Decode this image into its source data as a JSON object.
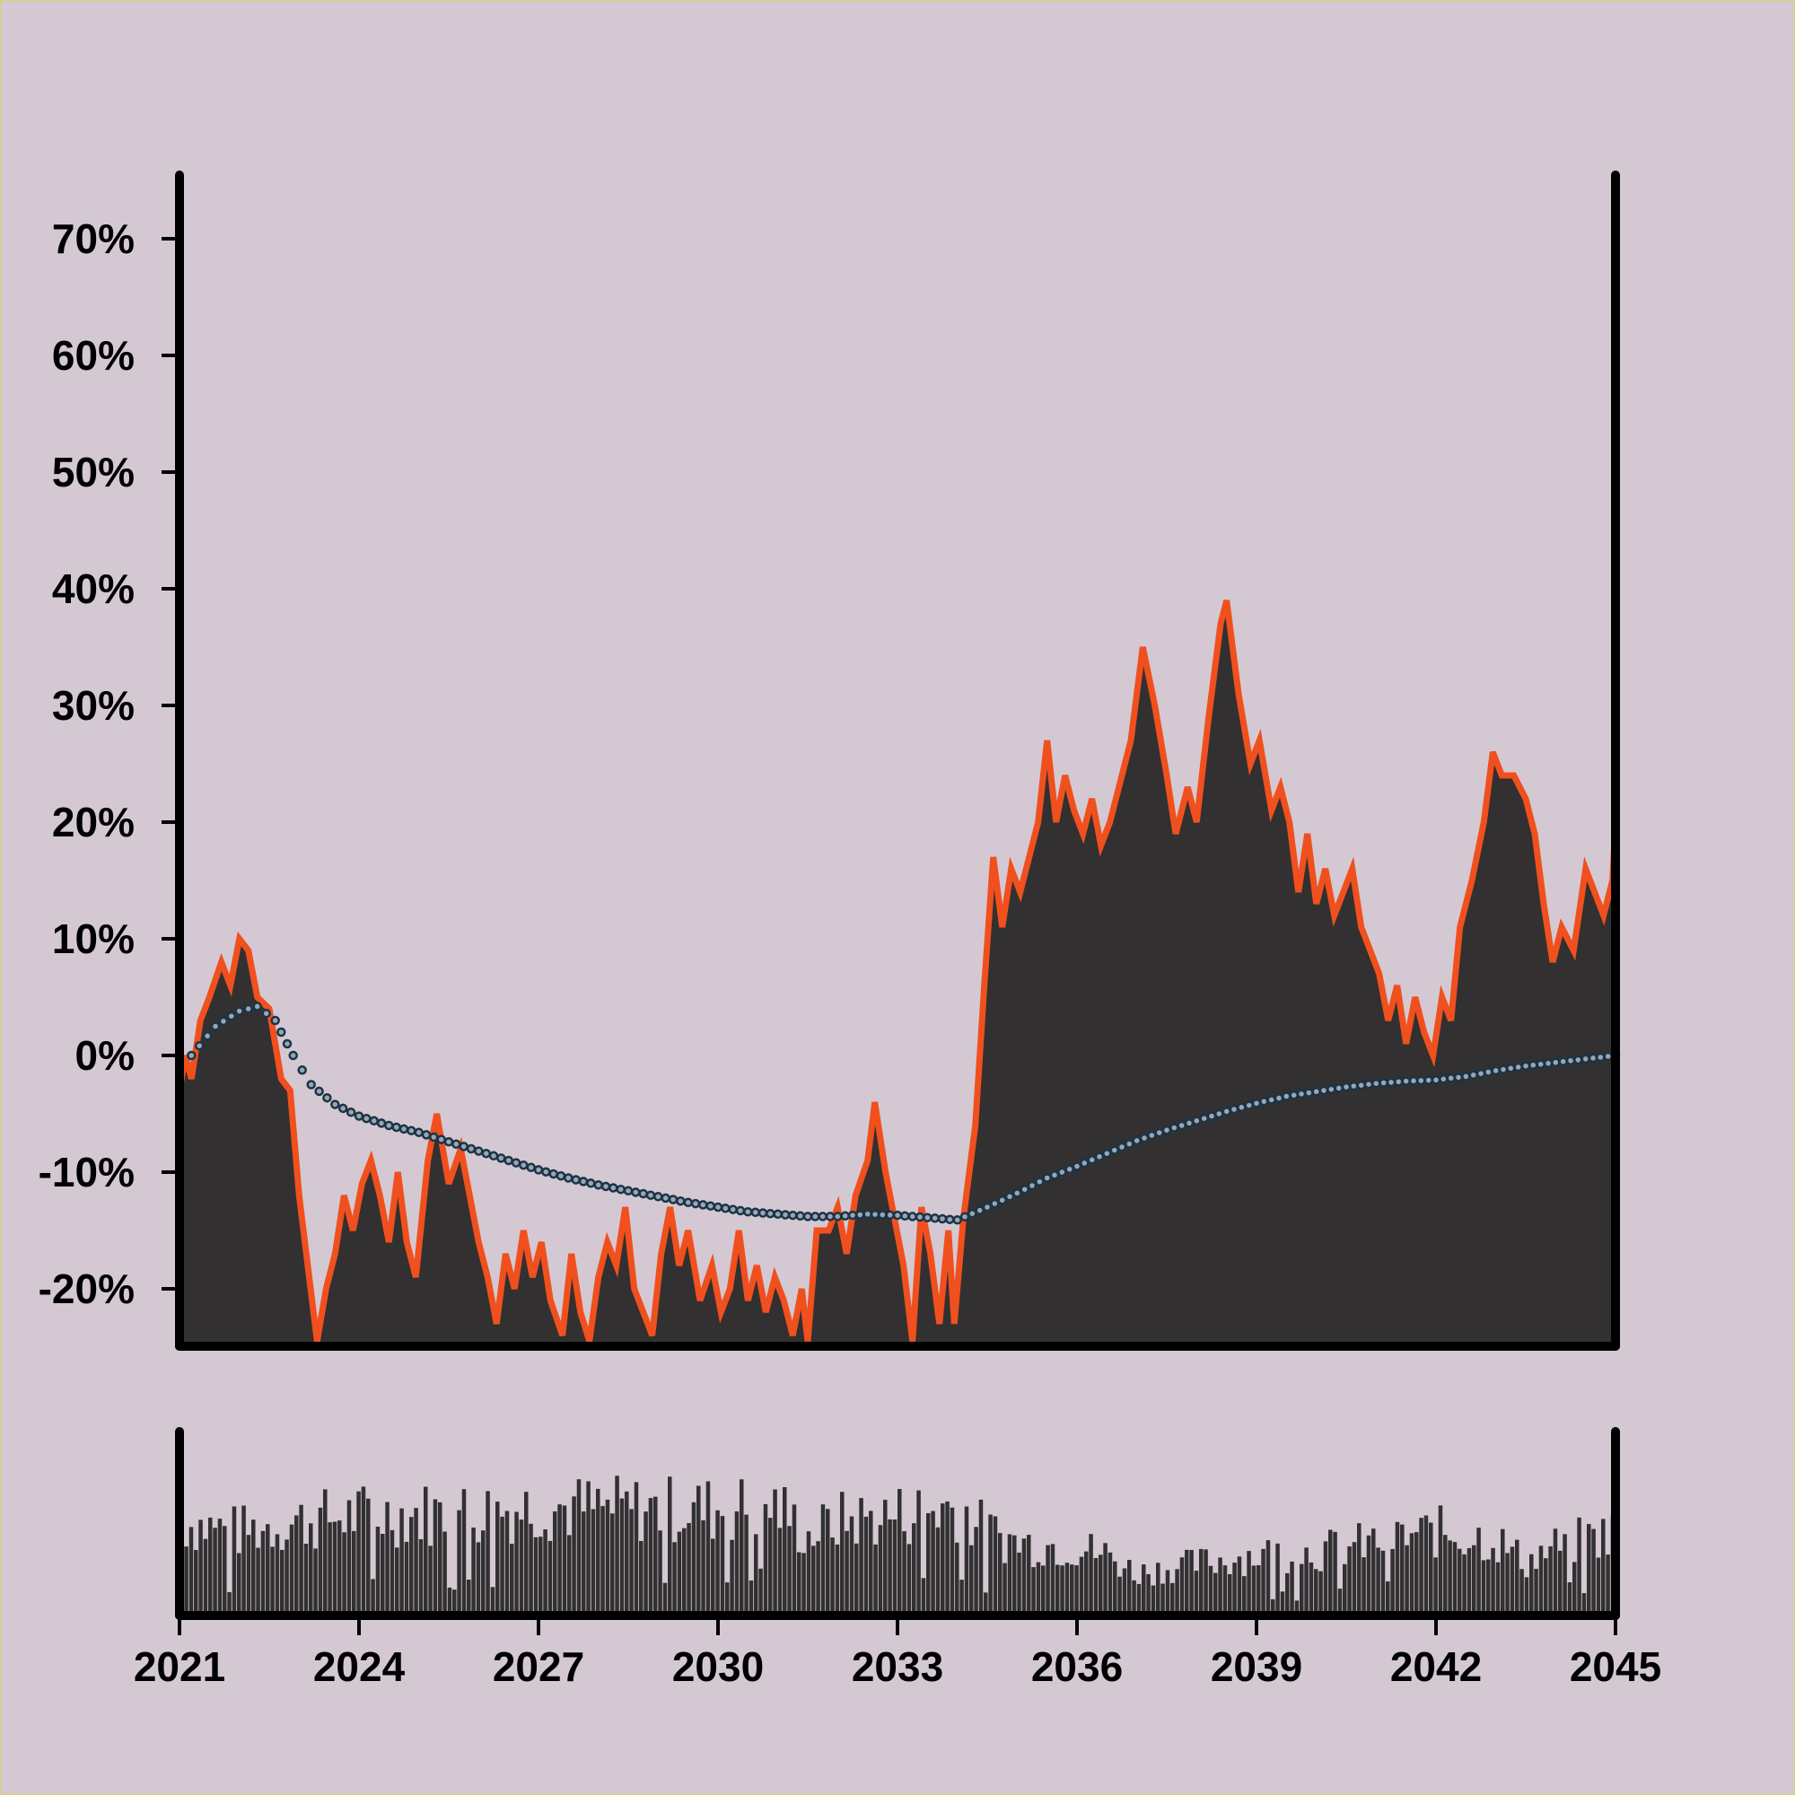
{
  "colors": {
    "background": "#d4c9d3",
    "fill": "#323031",
    "line": "#f0501e",
    "dots": "#1c3444",
    "axis": "#000000"
  },
  "chart_data": [
    {
      "type": "area",
      "title": "",
      "xlabel": "",
      "ylabel": "",
      "xlim": [
        2021,
        2045
      ],
      "ylim": [
        -24.5,
        75
      ],
      "grid": false,
      "legend": "none",
      "y_tick_labels": [
        "-20%",
        "-10%",
        "0%",
        "10%",
        "20%",
        "30%",
        "40%",
        "50%",
        "60%",
        "70%"
      ],
      "y_ticks": [
        -20,
        -10,
        0,
        10,
        20,
        30,
        40,
        50,
        60,
        70
      ],
      "series": [
        {
          "style": "area-with-line",
          "points": [
            [
              2021.0,
              -3
            ],
            [
              2021.1,
              0
            ],
            [
              2021.2,
              -2
            ],
            [
              2021.35,
              3
            ],
            [
              2021.5,
              5
            ],
            [
              2021.7,
              8
            ],
            [
              2021.85,
              6
            ],
            [
              2022.0,
              10
            ],
            [
              2022.15,
              9
            ],
            [
              2022.3,
              5
            ],
            [
              2022.5,
              4
            ],
            [
              2022.7,
              -2
            ],
            [
              2022.85,
              -3
            ],
            [
              2023.0,
              -12
            ],
            [
              2023.3,
              -24.5
            ],
            [
              2023.45,
              -20
            ],
            [
              2023.6,
              -17
            ],
            [
              2023.75,
              -12
            ],
            [
              2023.9,
              -15
            ],
            [
              2024.05,
              -11
            ],
            [
              2024.2,
              -9
            ],
            [
              2024.35,
              -12
            ],
            [
              2024.5,
              -16
            ],
            [
              2024.65,
              -10
            ],
            [
              2024.8,
              -16
            ],
            [
              2024.95,
              -19
            ],
            [
              2025.15,
              -9
            ],
            [
              2025.3,
              -5
            ],
            [
              2025.5,
              -11
            ],
            [
              2025.7,
              -8
            ],
            [
              2025.85,
              -12
            ],
            [
              2026.0,
              -16
            ],
            [
              2026.15,
              -19
            ],
            [
              2026.3,
              -23
            ],
            [
              2026.45,
              -17
            ],
            [
              2026.6,
              -20
            ],
            [
              2026.75,
              -15
            ],
            [
              2026.9,
              -19
            ],
            [
              2027.05,
              -16
            ],
            [
              2027.2,
              -21
            ],
            [
              2027.4,
              -24
            ],
            [
              2027.55,
              -17
            ],
            [
              2027.7,
              -22
            ],
            [
              2027.85,
              -24.5
            ],
            [
              2028.0,
              -19
            ],
            [
              2028.15,
              -16
            ],
            [
              2028.3,
              -18
            ],
            [
              2028.45,
              -13
            ],
            [
              2028.6,
              -20
            ],
            [
              2028.75,
              -22
            ],
            [
              2028.9,
              -24
            ],
            [
              2029.05,
              -17
            ],
            [
              2029.2,
              -13
            ],
            [
              2029.35,
              -18
            ],
            [
              2029.5,
              -15
            ],
            [
              2029.7,
              -21
            ],
            [
              2029.9,
              -18
            ],
            [
              2030.05,
              -22
            ],
            [
              2030.2,
              -20
            ],
            [
              2030.35,
              -15
            ],
            [
              2030.5,
              -21
            ],
            [
              2030.65,
              -18
            ],
            [
              2030.8,
              -22
            ],
            [
              2030.95,
              -19
            ],
            [
              2031.1,
              -21
            ],
            [
              2031.25,
              -24
            ],
            [
              2031.4,
              -20
            ],
            [
              2031.5,
              -24.5
            ],
            [
              2031.65,
              -15
            ],
            [
              2031.85,
              -15
            ],
            [
              2032.0,
              -13
            ],
            [
              2032.15,
              -17
            ],
            [
              2032.3,
              -12
            ],
            [
              2032.5,
              -9
            ],
            [
              2032.62,
              -4
            ],
            [
              2032.8,
              -10
            ],
            [
              2032.95,
              -14
            ],
            [
              2033.1,
              -18
            ],
            [
              2033.25,
              -24.5
            ],
            [
              2033.4,
              -13
            ],
            [
              2033.55,
              -17
            ],
            [
              2033.7,
              -23
            ],
            [
              2033.85,
              -15
            ],
            [
              2033.95,
              -23
            ],
            [
              2034.1,
              -14
            ],
            [
              2034.3,
              -6
            ],
            [
              2034.45,
              6
            ],
            [
              2034.6,
              17
            ],
            [
              2034.75,
              11
            ],
            [
              2034.9,
              16
            ],
            [
              2035.05,
              14
            ],
            [
              2035.2,
              17
            ],
            [
              2035.35,
              20
            ],
            [
              2035.5,
              27
            ],
            [
              2035.65,
              20
            ],
            [
              2035.8,
              24
            ],
            [
              2035.95,
              21
            ],
            [
              2036.1,
              19
            ],
            [
              2036.25,
              22
            ],
            [
              2036.4,
              18
            ],
            [
              2036.55,
              20
            ],
            [
              2036.7,
              23
            ],
            [
              2036.9,
              27
            ],
            [
              2037.1,
              35
            ],
            [
              2037.3,
              30
            ],
            [
              2037.5,
              24
            ],
            [
              2037.65,
              19
            ],
            [
              2037.85,
              23
            ],
            [
              2038.0,
              20
            ],
            [
              2038.2,
              29
            ],
            [
              2038.4,
              37
            ],
            [
              2038.5,
              39
            ],
            [
              2038.7,
              31
            ],
            [
              2038.9,
              25
            ],
            [
              2039.05,
              27
            ],
            [
              2039.25,
              21
            ],
            [
              2039.4,
              23
            ],
            [
              2039.55,
              20
            ],
            [
              2039.7,
              14
            ],
            [
              2039.85,
              19
            ],
            [
              2040.0,
              13
            ],
            [
              2040.15,
              16
            ],
            [
              2040.3,
              12
            ],
            [
              2040.45,
              14
            ],
            [
              2040.6,
              16
            ],
            [
              2040.75,
              11
            ],
            [
              2040.9,
              9
            ],
            [
              2041.05,
              7
            ],
            [
              2041.2,
              3
            ],
            [
              2041.35,
              6
            ],
            [
              2041.5,
              1
            ],
            [
              2041.65,
              5
            ],
            [
              2041.8,
              2
            ],
            [
              2041.95,
              0
            ],
            [
              2042.1,
              5
            ],
            [
              2042.25,
              3
            ],
            [
              2042.4,
              11
            ],
            [
              2042.6,
              15
            ],
            [
              2042.8,
              20
            ],
            [
              2042.95,
              26
            ],
            [
              2043.1,
              24
            ],
            [
              2043.3,
              24
            ],
            [
              2043.5,
              22
            ],
            [
              2043.65,
              19
            ],
            [
              2043.8,
              13
            ],
            [
              2043.95,
              8
            ],
            [
              2044.1,
              11
            ],
            [
              2044.3,
              9
            ],
            [
              2044.5,
              16
            ],
            [
              2044.65,
              14
            ],
            [
              2044.8,
              12
            ],
            [
              2044.95,
              15
            ],
            [
              2045.0,
              20
            ]
          ]
        },
        {
          "style": "dotted",
          "points": [
            [
              2021.2,
              0
            ],
            [
              2021.6,
              2.5
            ],
            [
              2022.0,
              3.8
            ],
            [
              2022.3,
              4.2
            ],
            [
              2022.6,
              3
            ],
            [
              2022.9,
              0
            ],
            [
              2023.2,
              -2.5
            ],
            [
              2023.6,
              -4.2
            ],
            [
              2024.0,
              -5.2
            ],
            [
              2024.5,
              -6
            ],
            [
              2025.0,
              -6.6
            ],
            [
              2025.5,
              -7.4
            ],
            [
              2026.0,
              -8.2
            ],
            [
              2026.5,
              -9
            ],
            [
              2027.0,
              -9.8
            ],
            [
              2027.5,
              -10.5
            ],
            [
              2028.0,
              -11.1
            ],
            [
              2028.5,
              -11.6
            ],
            [
              2029.0,
              -12.1
            ],
            [
              2029.5,
              -12.6
            ],
            [
              2030.0,
              -13
            ],
            [
              2030.5,
              -13.4
            ],
            [
              2031.0,
              -13.6
            ],
            [
              2031.5,
              -13.8
            ],
            [
              2032.0,
              -13.8
            ],
            [
              2032.5,
              -13.6
            ],
            [
              2033.0,
              -13.7
            ],
            [
              2033.5,
              -13.9
            ],
            [
              2034.0,
              -14.1
            ],
            [
              2034.5,
              -13
            ],
            [
              2035.0,
              -11.8
            ],
            [
              2035.5,
              -10.5
            ],
            [
              2036.0,
              -9.5
            ],
            [
              2036.5,
              -8.4
            ],
            [
              2037.0,
              -7.3
            ],
            [
              2037.5,
              -6.4
            ],
            [
              2038.0,
              -5.6
            ],
            [
              2038.5,
              -4.8
            ],
            [
              2039.0,
              -4.1
            ],
            [
              2039.5,
              -3.5
            ],
            [
              2040.0,
              -3.1
            ],
            [
              2040.5,
              -2.7
            ],
            [
              2041.0,
              -2.4
            ],
            [
              2041.5,
              -2.2
            ],
            [
              2042.0,
              -2.1
            ],
            [
              2042.5,
              -1.8
            ],
            [
              2043.0,
              -1.3
            ],
            [
              2043.5,
              -0.9
            ],
            [
              2044.0,
              -0.6
            ],
            [
              2044.5,
              -0.3
            ],
            [
              2045.0,
              0
            ]
          ]
        }
      ]
    },
    {
      "type": "bar",
      "title": "",
      "xlabel": "",
      "ylabel": "",
      "xlim": [
        2021,
        2045
      ],
      "ylim": [
        0,
        1
      ],
      "x_ticks": [
        2021,
        2024,
        2027,
        2030,
        2033,
        2036,
        2039,
        2042,
        2045
      ],
      "x_tick_labels": [
        "2021",
        "2024",
        "2027",
        "2030",
        "2033",
        "2036",
        "2039",
        "2042",
        "2045"
      ],
      "bar_count": 300,
      "envelope": [
        [
          2021.0,
          0.62
        ],
        [
          2022.0,
          0.55
        ],
        [
          2023.0,
          0.62
        ],
        [
          2024.0,
          0.66
        ],
        [
          2025.0,
          0.67
        ],
        [
          2026.0,
          0.68
        ],
        [
          2027.0,
          0.72
        ],
        [
          2028.0,
          0.7
        ],
        [
          2029.0,
          0.7
        ],
        [
          2030.0,
          0.7
        ],
        [
          2031.0,
          0.72
        ],
        [
          2031.5,
          0.52
        ],
        [
          2032.0,
          0.62
        ],
        [
          2033.0,
          0.66
        ],
        [
          2034.0,
          0.72
        ],
        [
          2034.5,
          0.55
        ],
        [
          2035.0,
          0.48
        ],
        [
          2036.0,
          0.45
        ],
        [
          2036.5,
          0.4
        ],
        [
          2037.0,
          0.28
        ],
        [
          2038.0,
          0.34
        ],
        [
          2039.0,
          0.4
        ],
        [
          2040.0,
          0.42
        ],
        [
          2041.0,
          0.48
        ],
        [
          2042.0,
          0.55
        ],
        [
          2043.0,
          0.5
        ],
        [
          2043.5,
          0.35
        ],
        [
          2044.0,
          0.45
        ],
        [
          2045.0,
          0.55
        ]
      ]
    }
  ]
}
